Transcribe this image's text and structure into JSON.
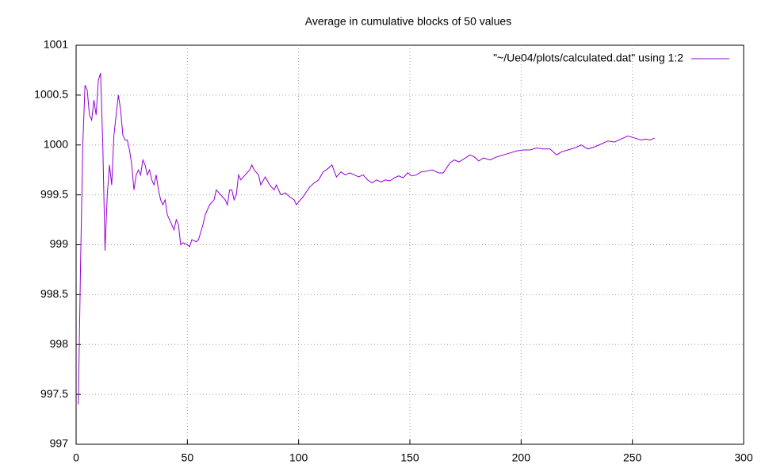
{
  "chart_data": {
    "type": "line",
    "title": "Average in cumulative blocks of 50 values",
    "x": [
      1,
      2,
      3,
      4,
      5,
      6,
      7,
      8,
      9,
      10,
      11,
      12,
      13,
      14,
      15,
      16,
      17,
      18,
      19,
      20,
      21,
      22,
      23,
      24,
      25,
      26,
      27,
      28,
      29,
      30,
      31,
      32,
      33,
      34,
      35,
      36,
      37,
      38,
      39,
      40,
      41,
      42,
      43,
      44,
      45,
      46,
      47,
      48,
      50,
      51,
      52,
      54,
      55,
      57,
      58,
      60,
      62,
      63,
      65,
      67,
      68,
      69,
      70,
      71,
      72,
      73,
      74,
      76,
      78,
      79,
      80,
      82,
      83,
      85,
      87,
      89,
      90,
      92,
      94,
      96,
      98,
      99,
      100,
      102,
      105,
      107,
      109,
      111,
      113,
      115,
      117,
      119,
      121,
      123,
      125,
      127,
      129,
      131,
      133,
      135,
      137,
      139,
      141,
      143,
      145,
      147,
      149,
      151,
      153,
      155,
      158,
      160,
      163,
      165,
      168,
      170,
      172,
      175,
      177,
      179,
      181,
      183,
      186,
      189,
      192,
      195,
      198,
      201,
      204,
      207,
      210,
      213,
      216,
      218,
      221,
      224,
      227,
      230,
      233,
      236,
      239,
      242,
      245,
      248,
      251,
      254,
      256,
      258,
      260
    ],
    "series": [
      {
        "name": "\"~/Ue04/plots/calculated.dat\" using 1:2",
        "color": "#9400d3",
        "values": [
          997.4,
          998.8,
          1000.0,
          1000.6,
          1000.55,
          1000.3,
          1000.25,
          1000.45,
          1000.3,
          1000.65,
          1000.72,
          1000.0,
          998.94,
          999.5,
          999.8,
          999.6,
          1000.1,
          1000.3,
          1000.5,
          1000.35,
          1000.1,
          1000.05,
          1000.05,
          999.95,
          999.8,
          999.55,
          999.7,
          999.75,
          999.7,
          999.85,
          999.8,
          999.7,
          999.75,
          999.65,
          999.6,
          999.7,
          999.55,
          999.45,
          999.4,
          999.45,
          999.3,
          999.25,
          999.2,
          999.15,
          999.25,
          999.2,
          999.0,
          999.02,
          999.0,
          998.98,
          999.05,
          999.03,
          999.05,
          999.2,
          999.3,
          999.4,
          999.45,
          999.55,
          999.5,
          999.45,
          999.4,
          999.55,
          999.55,
          999.45,
          999.5,
          999.7,
          999.65,
          999.7,
          999.75,
          999.8,
          999.75,
          999.7,
          999.6,
          999.68,
          999.6,
          999.55,
          999.6,
          999.5,
          999.52,
          999.48,
          999.45,
          999.4,
          999.43,
          999.48,
          999.58,
          999.62,
          999.65,
          999.73,
          999.76,
          999.8,
          999.68,
          999.73,
          999.7,
          999.72,
          999.7,
          999.68,
          999.7,
          999.65,
          999.62,
          999.65,
          999.63,
          999.65,
          999.64,
          999.67,
          999.69,
          999.67,
          999.72,
          999.69,
          999.7,
          999.73,
          999.74,
          999.75,
          999.72,
          999.72,
          999.82,
          999.85,
          999.83,
          999.87,
          999.9,
          999.88,
          999.84,
          999.87,
          999.85,
          999.88,
          999.9,
          999.92,
          999.94,
          999.95,
          999.95,
          999.97,
          999.96,
          999.96,
          999.9,
          999.93,
          999.95,
          999.97,
          1000.0,
          999.96,
          999.98,
          1000.01,
          1000.04,
          1000.03,
          1000.06,
          1000.09,
          1000.07,
          1000.05,
          1000.06,
          1000.05,
          1000.07
        ]
      }
    ],
    "xlim": [
      0,
      300
    ],
    "xticks": [
      0,
      50,
      100,
      150,
      200,
      250,
      300
    ],
    "ylim": [
      997,
      1001
    ],
    "yticks": [
      997,
      997.5,
      998,
      998.5,
      999,
      999.5,
      1000,
      1000.5,
      1001
    ],
    "grid": true,
    "legend": "top-right"
  }
}
